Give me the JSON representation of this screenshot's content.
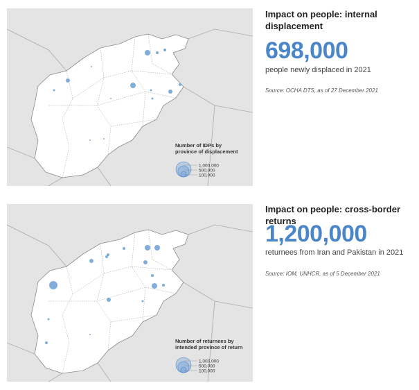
{
  "panels": [
    {
      "title": "Impact on people: internal displacement",
      "figure": "698,000",
      "description": "people newly displaced in 2021",
      "source": "Source: OCHA DTS, as of 27 December 2021",
      "legend": {
        "title": "Number of IDPs by province of displacement",
        "labels": [
          "1,000,000",
          "500,000",
          "100,000"
        ]
      }
    },
    {
      "title": "Impact on people: cross-border returns",
      "figure": "1,200,000",
      "description": "returnees from Iran and Pakistan in 2021",
      "source": "Source: IOM, UNHCR, as of 5 December 2021",
      "legend": {
        "title": "Number of returnees by intended province of return",
        "labels": [
          "1,000,000",
          "500,000",
          "100,000"
        ]
      }
    }
  ]
}
